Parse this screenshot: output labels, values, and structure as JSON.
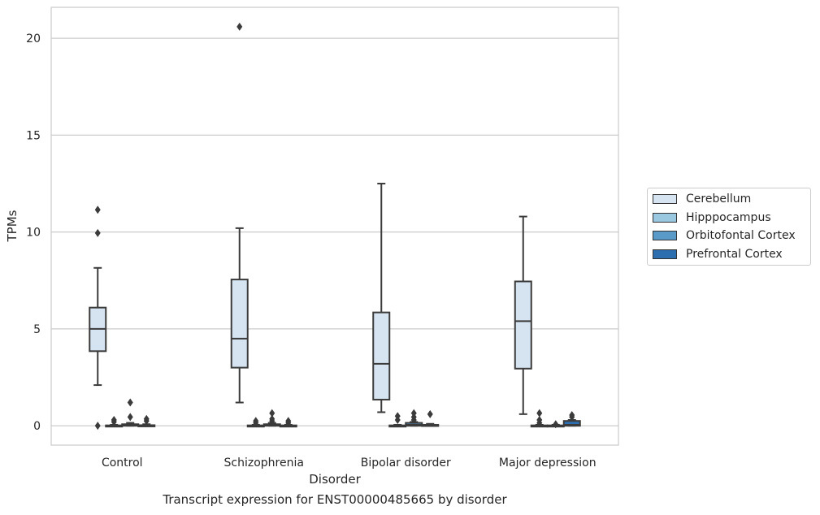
{
  "chart_data": {
    "type": "box",
    "title": "",
    "caption": "Transcript expression for ENST00000485665 by disorder",
    "xlabel": "Disorder",
    "ylabel": "TPMs",
    "ylim": [
      -1,
      21.6
    ],
    "yticks": [
      0,
      5,
      10,
      15,
      20
    ],
    "grid": "horizontal",
    "legend_placement": "right-outside",
    "categories": [
      "Control",
      "Schizophrenia",
      "Bipolar disorder",
      "Major depression"
    ],
    "series": [
      {
        "name": "Cerebellum",
        "color": "#d6e4f1",
        "boxes": [
          {
            "whisker_low": 2.1,
            "q1": 3.85,
            "median": 5.0,
            "q3": 6.1,
            "whisker_high": 8.15,
            "outliers": [
              0.0,
              9.95,
              11.15
            ]
          },
          {
            "whisker_low": 1.2,
            "q1": 3.0,
            "median": 4.5,
            "q3": 7.55,
            "whisker_high": 10.2,
            "outliers": [
              20.6
            ]
          },
          {
            "whisker_low": 0.7,
            "q1": 1.35,
            "median": 3.2,
            "q3": 5.85,
            "whisker_high": 12.5,
            "outliers": []
          },
          {
            "whisker_low": 0.6,
            "q1": 2.95,
            "median": 5.4,
            "q3": 7.45,
            "whisker_high": 10.8,
            "outliers": []
          }
        ]
      },
      {
        "name": "Hipppocampus",
        "color": "#9ac8e0",
        "boxes": [
          {
            "whisker_low": 0.0,
            "q1": 0.0,
            "median": 0.0,
            "q3": 0.02,
            "whisker_high": 0.05,
            "outliers": [
              0.2,
              0.3
            ]
          },
          {
            "whisker_low": 0.0,
            "q1": 0.0,
            "median": 0.0,
            "q3": 0.02,
            "whisker_high": 0.05,
            "outliers": [
              0.15,
              0.25
            ]
          },
          {
            "whisker_low": 0.0,
            "q1": 0.0,
            "median": 0.0,
            "q3": 0.02,
            "whisker_high": 0.05,
            "outliers": [
              0.3,
              0.5
            ]
          },
          {
            "whisker_low": 0.0,
            "q1": 0.0,
            "median": 0.0,
            "q3": 0.02,
            "whisker_high": 0.05,
            "outliers": [
              0.15,
              0.3,
              0.65
            ]
          }
        ]
      },
      {
        "name": "Orbitofontal Cortex",
        "color": "#5a9ac8",
        "boxes": [
          {
            "whisker_low": 0.0,
            "q1": 0.0,
            "median": 0.02,
            "q3": 0.08,
            "whisker_high": 0.15,
            "outliers": [
              0.45,
              1.2
            ]
          },
          {
            "whisker_low": 0.0,
            "q1": 0.0,
            "median": 0.02,
            "q3": 0.08,
            "whisker_high": 0.15,
            "outliers": [
              0.25,
              0.35,
              0.65
            ]
          },
          {
            "whisker_low": 0.0,
            "q1": 0.0,
            "median": 0.05,
            "q3": 0.15,
            "whisker_high": 0.2,
            "outliers": [
              0.3,
              0.45,
              0.65
            ]
          },
          {
            "whisker_low": 0.0,
            "q1": 0.0,
            "median": 0.0,
            "q3": 0.02,
            "whisker_high": 0.05,
            "outliers": [
              0.08
            ]
          }
        ]
      },
      {
        "name": "Prefrontal Cortex",
        "color": "#2d6eae",
        "boxes": [
          {
            "whisker_low": 0.0,
            "q1": 0.0,
            "median": 0.0,
            "q3": 0.03,
            "whisker_high": 0.08,
            "outliers": [
              0.25,
              0.35
            ]
          },
          {
            "whisker_low": 0.0,
            "q1": 0.0,
            "median": 0.0,
            "q3": 0.02,
            "whisker_high": 0.05,
            "outliers": [
              0.15,
              0.25
            ]
          },
          {
            "whisker_low": 0.0,
            "q1": 0.0,
            "median": 0.0,
            "q3": 0.05,
            "whisker_high": 0.1,
            "outliers": [
              0.6
            ]
          },
          {
            "whisker_low": 0.0,
            "q1": 0.0,
            "median": 0.05,
            "q3": 0.25,
            "whisker_high": 0.3,
            "outliers": [
              0.45,
              0.55
            ]
          }
        ]
      }
    ]
  }
}
